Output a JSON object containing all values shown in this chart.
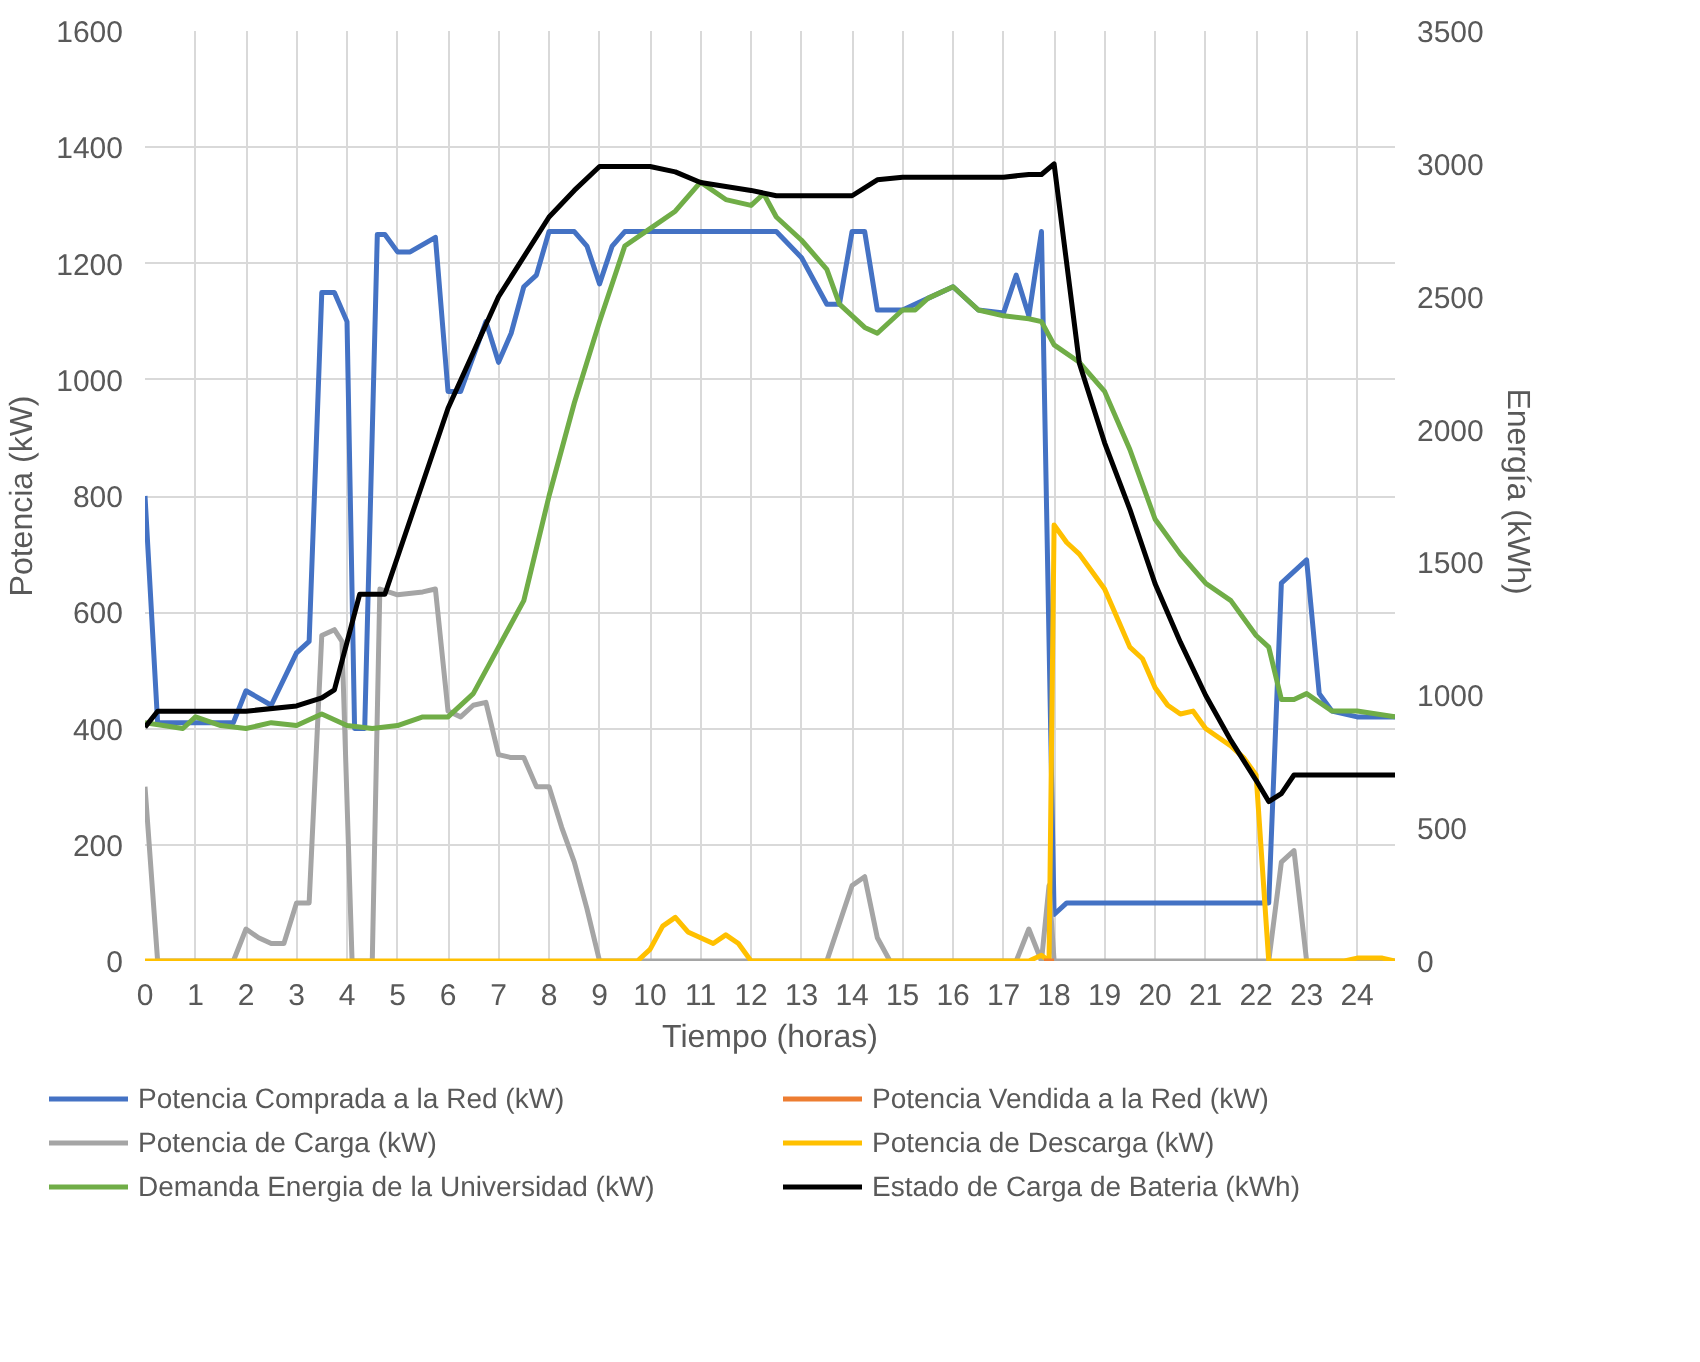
{
  "chart_data": {
    "type": "line",
    "xlabel": "Tiempo (horas)",
    "ylabel": "Potencia (kW)",
    "y2label": "Energía  (kWh)",
    "xlim": [
      0,
      24.75
    ],
    "xticks": [
      0,
      1,
      2,
      3,
      4,
      5,
      6,
      7,
      8,
      9,
      10,
      11,
      12,
      13,
      14,
      15,
      16,
      17,
      18,
      19,
      20,
      21,
      22,
      23,
      24
    ],
    "ylim": [
      0,
      1600
    ],
    "yticks": [
      0,
      200,
      400,
      600,
      800,
      1000,
      1200,
      1400,
      1600
    ],
    "y2lim": [
      0,
      3500
    ],
    "y2ticks": [
      0,
      500,
      1000,
      1500,
      2000,
      2500,
      3000,
      3500
    ],
    "grid": true,
    "legend": "bottom",
    "marker": "none",
    "line_style": "solid",
    "series": [
      {
        "name": "Potencia Comprada a la Red (kW)",
        "color": "#4472c4",
        "x": [
          0,
          0.25,
          1.75,
          2,
          2.5,
          3,
          3.25,
          3.5,
          3.75,
          4,
          4.15,
          4.35,
          4.6,
          4.75,
          5,
          5.25,
          5.75,
          6,
          6.25,
          6.75,
          7,
          7.25,
          7.5,
          7.75,
          8,
          8.5,
          8.75,
          9,
          9.25,
          9.5,
          10,
          12.5,
          13,
          13.5,
          13.75,
          14,
          14.25,
          14.5,
          15,
          15.5,
          16,
          16.5,
          17,
          17.25,
          17.5,
          17.75,
          18,
          18.25,
          22.25,
          22.5,
          23,
          23.25,
          23.5,
          24,
          24.75
        ],
        "values": [
          800,
          410,
          410,
          465,
          440,
          530,
          550,
          1150,
          1150,
          1100,
          400,
          400,
          1250,
          1250,
          1220,
          1220,
          1245,
          980,
          980,
          1100,
          1030,
          1080,
          1160,
          1180,
          1255,
          1255,
          1230,
          1165,
          1230,
          1255,
          1255,
          1255,
          1210,
          1130,
          1130,
          1255,
          1255,
          1120,
          1120,
          1140,
          1160,
          1120,
          1115,
          1180,
          1110,
          1255,
          80,
          100,
          100,
          650,
          690,
          460,
          430,
          420,
          420
        ]
      },
      {
        "name": "Potencia Vendida a la Red (kW)",
        "color": "#ed7d31",
        "x": [
          17.8,
          18
        ],
        "values": [
          0,
          0
        ]
      },
      {
        "name": "Potencia de Carga (kW)",
        "color": "#a5a5a5",
        "x": [
          0,
          0.25,
          1.75,
          2,
          2.25,
          2.5,
          2.75,
          3,
          3.25,
          3.5,
          3.75,
          3.9,
          4.1,
          4.5,
          4.65,
          5,
          5.5,
          5.75,
          6,
          6.25,
          6.5,
          6.75,
          7,
          7.25,
          7.5,
          7.75,
          8,
          8.25,
          8.5,
          8.75,
          9,
          13.5,
          14,
          14.25,
          14.5,
          14.75,
          17.25,
          17.5,
          17.75,
          17.9,
          18,
          22.25,
          22.5,
          22.75,
          23,
          24.75
        ],
        "values": [
          300,
          0,
          0,
          55,
          40,
          30,
          30,
          100,
          100,
          560,
          570,
          550,
          0,
          0,
          640,
          630,
          635,
          640,
          430,
          420,
          440,
          445,
          355,
          350,
          350,
          300,
          300,
          230,
          170,
          90,
          0,
          0,
          130,
          145,
          40,
          0,
          0,
          55,
          0,
          130,
          0,
          0,
          170,
          190,
          0,
          0
        ]
      },
      {
        "name": "Potencia de Descarga (kW)",
        "color": "#ffc000",
        "x": [
          0,
          9.75,
          10,
          10.25,
          10.5,
          10.75,
          11,
          11.25,
          11.5,
          11.75,
          12,
          17.5,
          17.75,
          17.9,
          18,
          18.25,
          18.5,
          18.75,
          19,
          19.25,
          19.5,
          19.75,
          20,
          20.25,
          20.5,
          20.75,
          21,
          21.25,
          21.5,
          21.75,
          22,
          22.25,
          23.75,
          24,
          24.5,
          24.75
        ],
        "values": [
          0,
          0,
          20,
          60,
          75,
          50,
          40,
          30,
          45,
          30,
          0,
          0,
          10,
          0,
          750,
          720,
          700,
          670,
          640,
          590,
          540,
          520,
          470,
          440,
          425,
          430,
          400,
          385,
          370,
          350,
          320,
          0,
          0,
          5,
          5,
          0
        ]
      },
      {
        "name": "Demanda Energia de la Universidad (kW)",
        "color": "#70ad47",
        "x": [
          0,
          0.75,
          1,
          1.5,
          2,
          2.5,
          3,
          3.5,
          4,
          4.5,
          5,
          5.5,
          6,
          6.5,
          7,
          7.5,
          8,
          8.5,
          9,
          9.5,
          10,
          10.5,
          11,
          11.5,
          12,
          12.25,
          12.5,
          13,
          13.5,
          13.75,
          14.25,
          14.5,
          15,
          15.25,
          15.5,
          16,
          16.5,
          17,
          17.5,
          17.75,
          18,
          18.5,
          19,
          19.5,
          20,
          20.5,
          21,
          21.5,
          22,
          22.25,
          22.5,
          22.75,
          23,
          23.5,
          24,
          24.75
        ],
        "values": [
          410,
          400,
          420,
          405,
          400,
          410,
          405,
          425,
          405,
          400,
          405,
          420,
          420,
          460,
          540,
          620,
          800,
          960,
          1100,
          1230,
          1260,
          1290,
          1340,
          1310,
          1300,
          1320,
          1280,
          1240,
          1190,
          1130,
          1090,
          1080,
          1120,
          1120,
          1140,
          1160,
          1120,
          1110,
          1105,
          1100,
          1060,
          1030,
          980,
          880,
          760,
          700,
          650,
          620,
          560,
          540,
          450,
          450,
          460,
          430,
          430,
          420
        ]
      },
      {
        "name": "Estado de Carga de Bateria (kWh)",
        "color": "#000000",
        "axis": "y2",
        "x": [
          0,
          0.25,
          1,
          2,
          3,
          3.5,
          3.75,
          4.25,
          4.75,
          5.5,
          6,
          7,
          8,
          8.5,
          9,
          10,
          10.5,
          11,
          12,
          12.5,
          14,
          14.5,
          15,
          17,
          17.5,
          17.75,
          18,
          18.5,
          19,
          19.5,
          20,
          20.5,
          21,
          21.5,
          22,
          22.25,
          22.5,
          22.75,
          24.75
        ],
        "values": [
          880,
          940,
          940,
          940,
          960,
          990,
          1020,
          1380,
          1380,
          1800,
          2080,
          2500,
          2800,
          2900,
          2990,
          2990,
          2970,
          2930,
          2900,
          2880,
          2880,
          2940,
          2950,
          2950,
          2960,
          2960,
          3000,
          2250,
          1950,
          1700,
          1420,
          1200,
          1000,
          830,
          680,
          600,
          630,
          700,
          700
        ]
      }
    ]
  }
}
